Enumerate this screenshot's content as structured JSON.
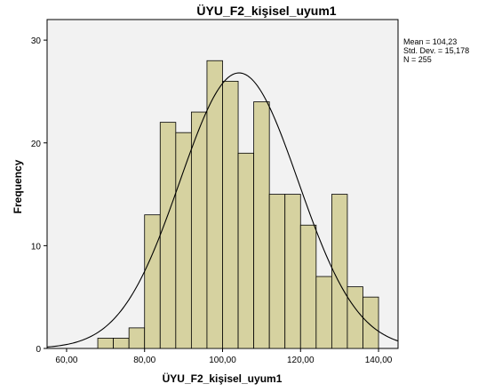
{
  "chart_data": {
    "type": "bar",
    "title": "ÜYU_F2_kişisel_uyum1",
    "xlabel": "ÜYU_F2_kişisel_uyum1",
    "ylabel": "Frequency",
    "xlim": [
      55,
      145
    ],
    "ylim": [
      0,
      32
    ],
    "x_ticks": [
      "60,00",
      "80,00",
      "100,00",
      "120,00",
      "140,00"
    ],
    "x_tick_values": [
      60,
      80,
      100,
      120,
      140
    ],
    "y_ticks": [
      "0",
      "10",
      "20",
      "30"
    ],
    "y_tick_values": [
      0,
      10,
      20,
      30
    ],
    "bin_width": 4,
    "bins": [
      {
        "start": 68,
        "count": 1
      },
      {
        "start": 72,
        "count": 1
      },
      {
        "start": 76,
        "count": 2
      },
      {
        "start": 80,
        "count": 13
      },
      {
        "start": 84,
        "count": 22
      },
      {
        "start": 88,
        "count": 21
      },
      {
        "start": 92,
        "count": 23
      },
      {
        "start": 96,
        "count": 28
      },
      {
        "start": 100,
        "count": 26
      },
      {
        "start": 104,
        "count": 19
      },
      {
        "start": 108,
        "count": 24
      },
      {
        "start": 112,
        "count": 15
      },
      {
        "start": 116,
        "count": 15
      },
      {
        "start": 120,
        "count": 12
      },
      {
        "start": 124,
        "count": 7
      },
      {
        "start": 128,
        "count": 15
      },
      {
        "start": 132,
        "count": 6
      },
      {
        "start": 136,
        "count": 5
      }
    ],
    "normal_curve": {
      "mean": 104.23,
      "std": 15.178,
      "n": 255
    },
    "stats_labels": {
      "mean": "Mean = 104,23",
      "std": "Std. Dev. = 15,178",
      "n": "N = 255"
    },
    "colors": {
      "bar_fill": "#d6d2a0",
      "bar_stroke": "#000000",
      "plot_bg": "#f2f2f2",
      "curve": "#000000"
    },
    "grid": false,
    "stats_placement": "top-right"
  }
}
